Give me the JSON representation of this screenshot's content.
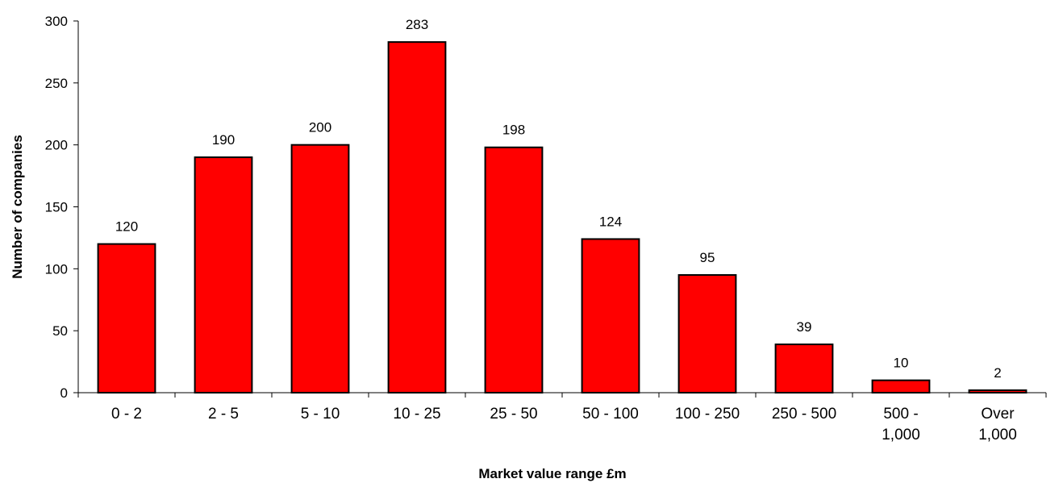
{
  "chart_data": {
    "type": "bar",
    "title": "",
    "xlabel": "Market value range £m",
    "ylabel": "Number of companies",
    "categories": [
      [
        "0 - 2"
      ],
      [
        "2 - 5"
      ],
      [
        "5 - 10"
      ],
      [
        "10 - 25"
      ],
      [
        "25 - 50"
      ],
      [
        "50 - 100"
      ],
      [
        "100 - 250"
      ],
      [
        "250 - 500"
      ],
      [
        "500 -",
        "1,000"
      ],
      [
        "Over",
        "1,000"
      ]
    ],
    "values": [
      120,
      190,
      200,
      283,
      198,
      124,
      95,
      39,
      10,
      2
    ],
    "ylim": [
      0,
      300
    ],
    "yticks": [
      0,
      50,
      100,
      150,
      200,
      250,
      300
    ],
    "grid": false,
    "legend": "none",
    "bar_color": "#ff0000",
    "bar_outline": "#000000"
  }
}
